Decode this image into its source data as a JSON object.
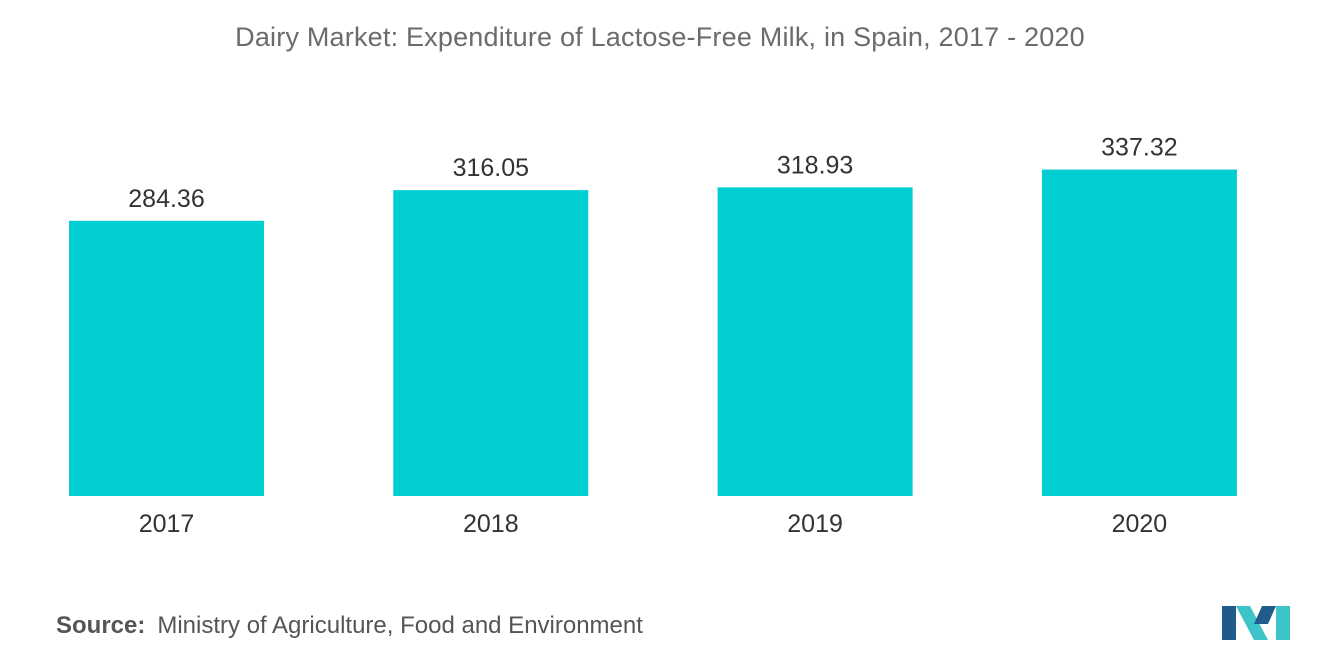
{
  "colors": {
    "bar": "#00ced1",
    "logo_dark": "#1f5c8b",
    "logo_light": "#3cc4c8"
  },
  "chart_data": {
    "type": "bar",
    "title": "Dairy Market: Expenditure of Lactose-Free Milk, in Spain, 2017 - 2020",
    "categories": [
      "2017",
      "2018",
      "2019",
      "2020"
    ],
    "values": [
      284.36,
      316.05,
      318.93,
      337.32
    ],
    "value_labels": [
      "284.36",
      "316.05",
      "318.93",
      "337.32"
    ],
    "xlabel": "",
    "ylabel": "",
    "ylim": [
      0,
      372
    ],
    "grid": false,
    "legend": "none"
  },
  "source": {
    "label": "Source:",
    "text": "Ministry of Agriculture, Food and Environment"
  },
  "logo": {
    "icon": "mordor-intelligence-logo-icon"
  }
}
